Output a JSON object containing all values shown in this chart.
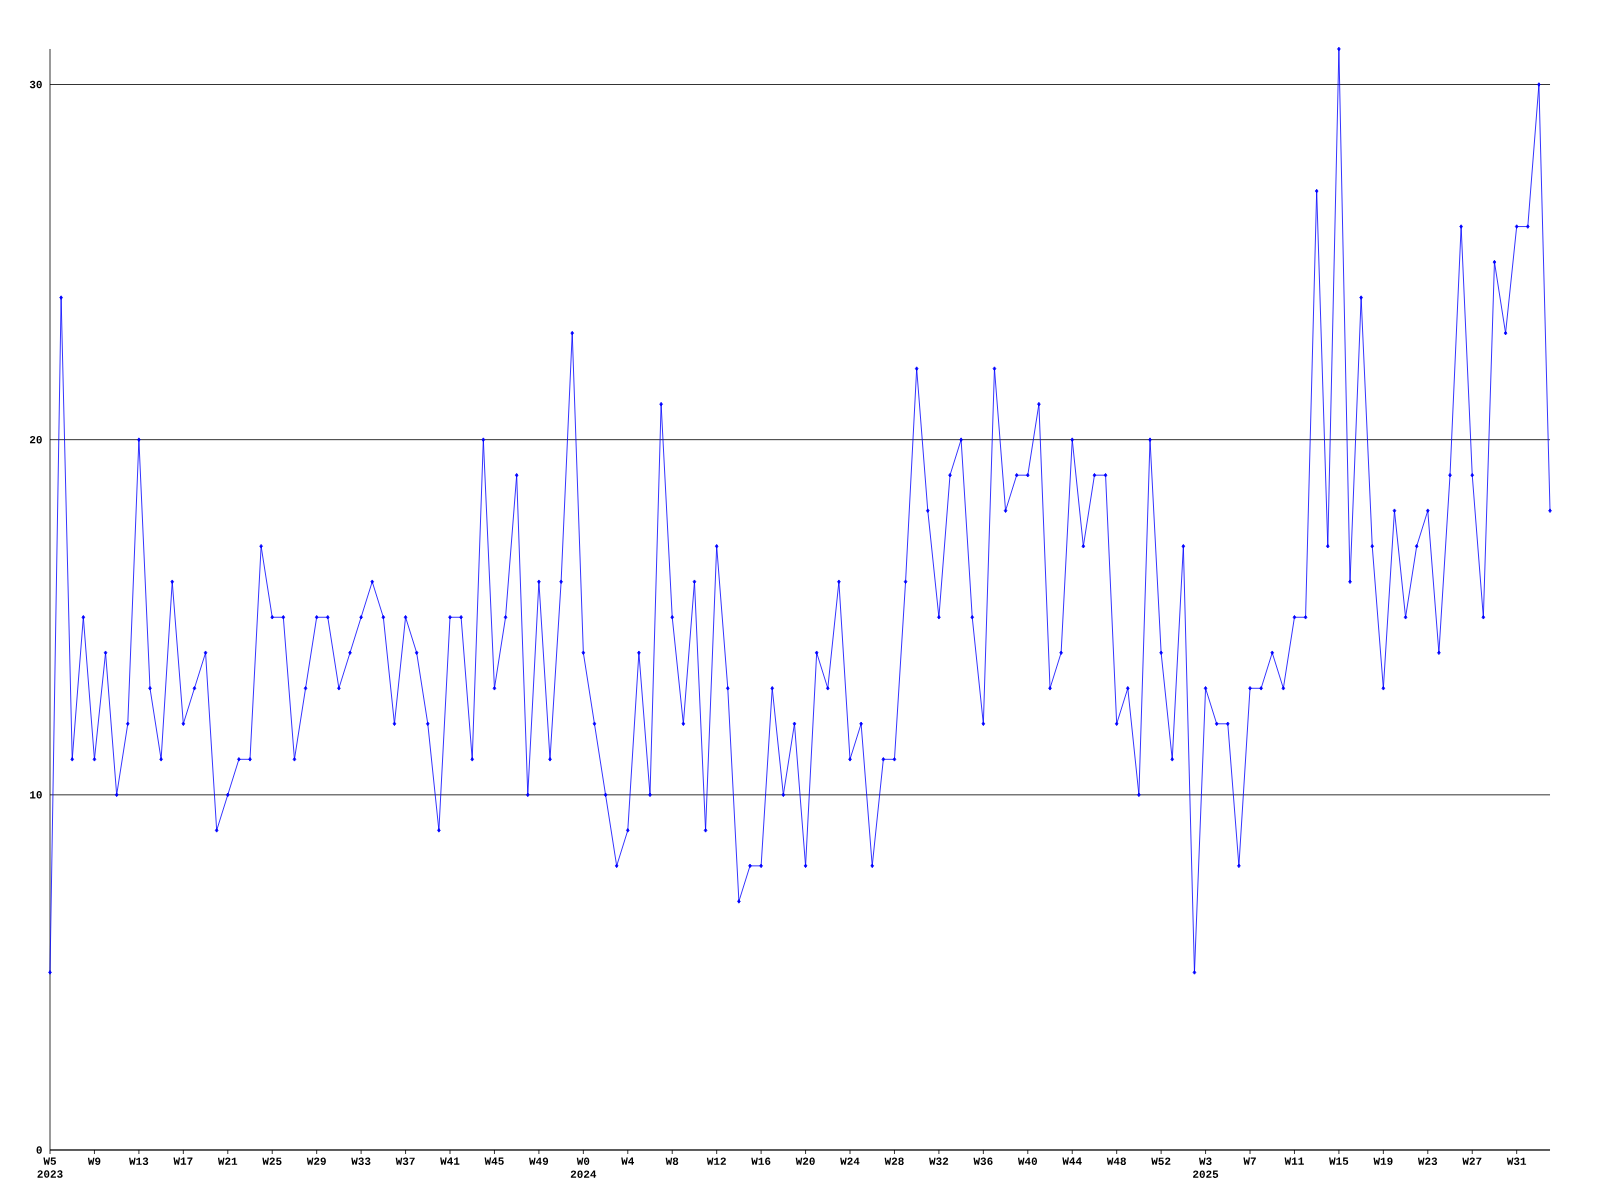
{
  "chart_data": {
    "type": "line",
    "categories": [
      "W5 2023",
      null,
      null,
      null,
      "W9",
      null,
      null,
      null,
      "W13",
      null,
      null,
      null,
      "W17",
      null,
      null,
      null,
      "W21",
      null,
      null,
      null,
      "W25",
      null,
      null,
      null,
      "W29",
      null,
      null,
      null,
      "W33",
      null,
      null,
      null,
      "W37",
      null,
      null,
      null,
      "W41",
      null,
      null,
      null,
      "W45",
      null,
      null,
      null,
      "W49",
      null,
      null,
      null,
      "W0 2024",
      null,
      null,
      null,
      "W4",
      null,
      null,
      null,
      "W8",
      null,
      null,
      null,
      "W12",
      null,
      null,
      null,
      "W16",
      null,
      null,
      null,
      "W20",
      null,
      null,
      null,
      "W24",
      null,
      null,
      null,
      "W28",
      null,
      null,
      null,
      "W32",
      null,
      null,
      null,
      "W36",
      null,
      null,
      null,
      "W40",
      null,
      null,
      null,
      "W44",
      null,
      null,
      null,
      "W48",
      null,
      null,
      null,
      "W52",
      null,
      null,
      null,
      "W3 2025",
      null,
      null,
      null,
      "W7",
      null,
      null,
      null,
      "W11",
      null,
      null,
      null,
      "W15",
      null,
      null,
      null,
      "W19",
      null,
      null,
      null,
      "W23",
      null,
      null,
      null,
      "W27",
      null,
      null,
      null,
      "W31",
      null,
      null,
      null
    ],
    "values": [
      5,
      24,
      11,
      15,
      11,
      14,
      10,
      12,
      20,
      13,
      11,
      16,
      12,
      13,
      14,
      9,
      10,
      11,
      11,
      17,
      15,
      15,
      11,
      13,
      15,
      15,
      13,
      14,
      15,
      16,
      15,
      12,
      15,
      14,
      12,
      9,
      15,
      15,
      11,
      20,
      13,
      15,
      19,
      10,
      16,
      11,
      16,
      23,
      14,
      12,
      10,
      8,
      9,
      14,
      10,
      21,
      15,
      12,
      16,
      9,
      17,
      13,
      7,
      8,
      8,
      13,
      10,
      12,
      8,
      14,
      13,
      16,
      11,
      12,
      8,
      11,
      11,
      16,
      22,
      18,
      15,
      19,
      20,
      15,
      12,
      22,
      18,
      19,
      19,
      21,
      13,
      14,
      20,
      17,
      19,
      19,
      12,
      13,
      10,
      20,
      14,
      11,
      17,
      5,
      13,
      12,
      12,
      8,
      13,
      13,
      14,
      13,
      15,
      15,
      27,
      17,
      31,
      16,
      24,
      17,
      13,
      18,
      15,
      17,
      18,
      14,
      19,
      26,
      19,
      15,
      25,
      23,
      26,
      26,
      30,
      18
    ],
    "color": "#0000ff",
    "ylim": [
      0,
      31
    ],
    "yticks": [
      0,
      10,
      20,
      30
    ],
    "grid": "y",
    "marker": "diamond",
    "line_style": "solid"
  }
}
